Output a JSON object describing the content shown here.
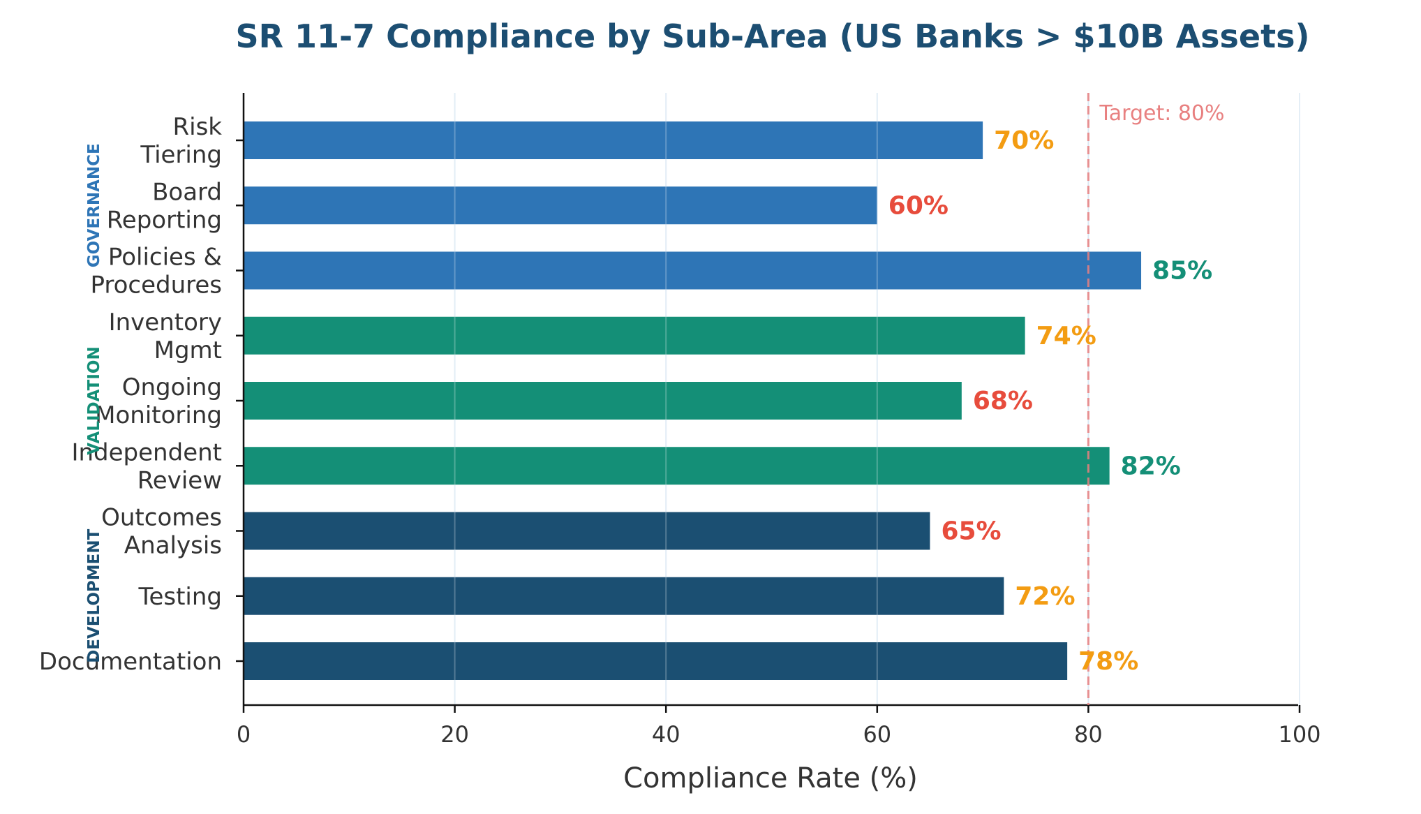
{
  "chart_data": {
    "type": "bar",
    "orientation": "horizontal",
    "title": "SR 11-7 Compliance by Sub-Area (US Banks > $10B Assets)",
    "xlabel": "Compliance Rate (%)",
    "ylabel": "",
    "xlim": [
      0,
      100
    ],
    "xticks": [
      "0",
      "20",
      "40",
      "60",
      "80",
      "100"
    ],
    "grid": "vertical",
    "categories": [
      [
        "Risk",
        "Tiering"
      ],
      [
        "Board",
        "Reporting"
      ],
      [
        "Policies &",
        "Procedures"
      ],
      [
        "Inventory",
        "Mgmt"
      ],
      [
        "Ongoing",
        "Monitoring"
      ],
      [
        "Independent",
        "Review"
      ],
      [
        "Outcomes",
        "Analysis"
      ],
      [
        "Testing"
      ],
      [
        "Documentation"
      ]
    ],
    "values": [
      70,
      60,
      85,
      74,
      68,
      82,
      65,
      72,
      78
    ],
    "value_labels": [
      "70%",
      "60%",
      "85%",
      "74%",
      "68%",
      "82%",
      "65%",
      "72%",
      "78%"
    ],
    "bar_groups": [
      "governance",
      "governance",
      "governance",
      "validation",
      "validation",
      "validation",
      "development",
      "development",
      "development"
    ],
    "groups": [
      {
        "key": "governance",
        "label": "GOVERNANCE",
        "color": "#2e75b6",
        "items": [
          0,
          1,
          2
        ]
      },
      {
        "key": "validation",
        "label": "VALIDATION",
        "color": "#148f77",
        "items": [
          3,
          4,
          5
        ]
      },
      {
        "key": "development",
        "label": "DEVELOPMENT",
        "color": "#1b4f72",
        "items": [
          6,
          7,
          8
        ]
      }
    ],
    "target": {
      "value": 80,
      "label": "Target: 80%",
      "color": "#e88080"
    },
    "label_colors": {
      "above_target": "#148f77",
      "near_target": "#f39c12",
      "below_target": "#e74c3c"
    }
  }
}
